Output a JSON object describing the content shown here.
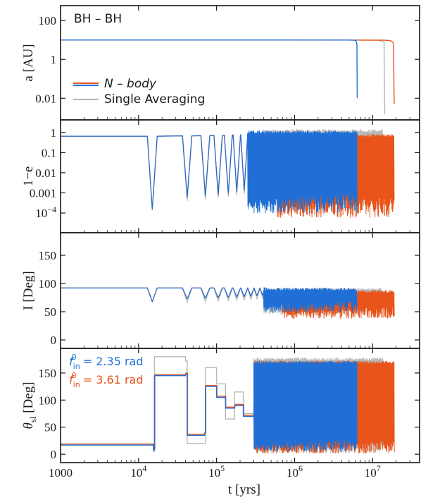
{
  "chart_data": {
    "type": "line",
    "title": "BH – BH",
    "xlabel": "t [yrs]",
    "xscale": "log",
    "xlim": [
      1000,
      40000000
    ],
    "x_ticks": [
      {
        "v": 1000,
        "base": "1000",
        "exp": ""
      },
      {
        "v": 10000,
        "base": "10",
        "exp": "4"
      },
      {
        "v": 100000,
        "base": "10",
        "exp": "5"
      },
      {
        "v": 1000000,
        "base": "10",
        "exp": "6"
      },
      {
        "v": 10000000,
        "base": "10",
        "exp": "7"
      }
    ],
    "legend": {
      "placement": "left",
      "entries": [
        {
          "name": "N – body",
          "color": "#e8541a"
        },
        {
          "name": "Single Averaging",
          "color": "#b5b5b5"
        }
      ]
    },
    "colors": {
      "nbody": "#e8541a",
      "blue": "#1f6fd6",
      "gray": "#b8b8b8"
    },
    "panels": [
      {
        "id": "a",
        "ylabel": "a [AU]",
        "yscale": "log",
        "ylim": [
          0.0015,
          300
        ],
        "y_ticks": [
          {
            "v": 100,
            "label": "100"
          },
          {
            "v": 1,
            "label": "1"
          },
          {
            "v": 0.01,
            "label": "0.01"
          }
        ],
        "series": [
          {
            "color": "gray",
            "points": [
              [
                1000,
                10
              ],
              [
                1000000,
                10
              ],
              [
                5000000,
                9.9
              ],
              [
                12000000,
                9.6
              ],
              [
                14000000,
                8
              ],
              [
                14300000,
                0.0015
              ]
            ]
          },
          {
            "color": "nbody",
            "points": [
              [
                1000,
                10
              ],
              [
                1000000,
                10
              ],
              [
                6000000,
                9.9
              ],
              [
                14000000,
                9.7
              ],
              [
                17000000,
                9.3
              ],
              [
                18500000,
                7
              ],
              [
                18900000,
                0.005
              ]
            ]
          },
          {
            "color": "blue",
            "points": [
              [
                1000,
                10
              ],
              [
                1000000,
                10
              ],
              [
                5000000,
                9.9
              ],
              [
                6100000,
                9.6
              ],
              [
                6300000,
                6
              ],
              [
                6350000,
                0.01
              ]
            ]
          }
        ]
      },
      {
        "id": "1-e",
        "ylabel": "1−e",
        "yscale": "log",
        "ylim": [
          2e-05,
          2.2
        ],
        "y_ticks": [
          {
            "v": 1,
            "label": "1",
            "exp": ""
          },
          {
            "v": 0.1,
            "label": "0.1",
            "exp": ""
          },
          {
            "v": 0.01,
            "label": "0.01",
            "exp": ""
          },
          {
            "v": 0.001,
            "label": "0.001",
            "exp": ""
          },
          {
            "v": 0.0001,
            "label": "10",
            "exp": "−4"
          }
        ],
        "dips": {
          "first": 15000,
          "step_initial": 27000,
          "growth": 1.105,
          "min_at_first": 0.00015,
          "baseline_start": 0.65,
          "baseline_end": 0.9
        },
        "bands": [
          {
            "color": "gray",
            "x_from": 400000,
            "x_to": 13500000,
            "y_from": 0.0002,
            "y_to": 1.4
          },
          {
            "color": "nbody",
            "x_from": 600000,
            "x_to": 19000000,
            "y_from": 6e-05,
            "y_to": 0.8
          },
          {
            "color": "blue",
            "x_from": 250000,
            "x_to": 6300000,
            "y_from": 0.0001,
            "y_to": 1.2
          }
        ]
      },
      {
        "id": "I",
        "ylabel": "I [Deg]",
        "yscale": "linear",
        "ylim": [
          -5,
          180
        ],
        "y_ticks": [
          {
            "v": 150,
            "label": "150"
          },
          {
            "v": 100,
            "label": "100"
          },
          {
            "v": 50,
            "label": "50"
          },
          {
            "v": 0,
            "label": "0"
          }
        ],
        "baseline": 92,
        "dip_min_first": 68,
        "bands": [
          {
            "color": "gray",
            "x_from": 400000,
            "x_to": 13500000,
            "y_from": 45,
            "y_to": 92
          },
          {
            "color": "nbody",
            "x_from": 700000,
            "x_to": 19000000,
            "y_from": 38,
            "y_to": 88
          },
          {
            "color": "blue",
            "x_from": 400000,
            "x_to": 6300000,
            "y_from": 48,
            "y_to": 92
          }
        ]
      },
      {
        "id": "theta",
        "ylabel": "θsl [Deg]",
        "ylabel_main": "θ",
        "ylabel_sub": "sl",
        "ylabel_unit": " [Deg]",
        "yscale": "linear",
        "ylim": [
          -5,
          185
        ],
        "y_ticks": [
          {
            "v": 150,
            "label": "150"
          },
          {
            "v": 100,
            "label": "100"
          },
          {
            "v": 50,
            "label": "50"
          },
          {
            "v": 0,
            "label": "0"
          }
        ],
        "annotations": [
          {
            "sym": "f",
            "sub": "in",
            "sup": "0",
            "text": " = 2.35 rad",
            "color": "blue"
          },
          {
            "sym": "f",
            "sub": "in",
            "sup": "0",
            "text": " = 3.61 rad",
            "color": "nbody"
          }
        ],
        "steps_gray": [
          [
            1000,
            17
          ],
          [
            14000,
            17
          ],
          [
            15500,
            5
          ],
          [
            16000,
            180
          ],
          [
            40000,
            172
          ],
          [
            42000,
            20
          ],
          [
            70000,
            20
          ],
          [
            72000,
            160
          ],
          [
            100000,
            130
          ],
          [
            130000,
            65
          ],
          [
            170000,
            115
          ],
          [
            220000,
            75
          ],
          [
            300000,
            60
          ]
        ],
        "steps_blue": [
          [
            1000,
            17
          ],
          [
            14000,
            17
          ],
          [
            15500,
            8
          ],
          [
            16000,
            145
          ],
          [
            40000,
            148
          ],
          [
            42000,
            35
          ],
          [
            70000,
            38
          ],
          [
            72000,
            125
          ],
          [
            100000,
            105
          ],
          [
            130000,
            85
          ],
          [
            170000,
            90
          ],
          [
            220000,
            70
          ],
          [
            300000,
            90
          ]
        ],
        "bands": [
          {
            "color": "gray",
            "x_from": 300000,
            "x_to": 13500000,
            "y_from": 2,
            "y_to": 178
          },
          {
            "color": "nbody",
            "x_from": 300000,
            "x_to": 19000000,
            "y_from": 2,
            "y_to": 172
          },
          {
            "color": "blue",
            "x_from": 300000,
            "x_to": 6300000,
            "y_from": 5,
            "y_to": 172
          }
        ]
      }
    ]
  }
}
